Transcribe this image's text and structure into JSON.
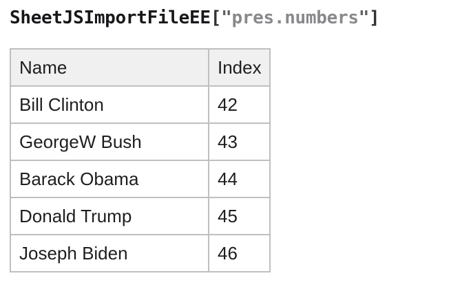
{
  "title": {
    "object_name": "SheetJSImportFileEE",
    "bracket_open": "[",
    "quote_open": "\"",
    "sheet_name": "pres.numbers",
    "quote_close": "\"",
    "bracket_close": "]"
  },
  "table": {
    "headers": {
      "name": "Name",
      "index": "Index"
    },
    "rows": [
      {
        "name": "Bill Clinton",
        "index": "42"
      },
      {
        "name": "GeorgeW Bush",
        "index": "43"
      },
      {
        "name": "Barack Obama",
        "index": "44"
      },
      {
        "name": "Donald Trump",
        "index": "45"
      },
      {
        "name": "Joseph Biden",
        "index": "46"
      }
    ]
  },
  "colors": {
    "text": "#1c1e21",
    "title-name": "#16181b",
    "title-bracket": "#2e3135",
    "title-quote": "#5c5f63",
    "title-string": "#87898d",
    "table-border": "#bfbfbf",
    "header-bg": "#f0f0f0",
    "page-bg": "#ffffff"
  }
}
